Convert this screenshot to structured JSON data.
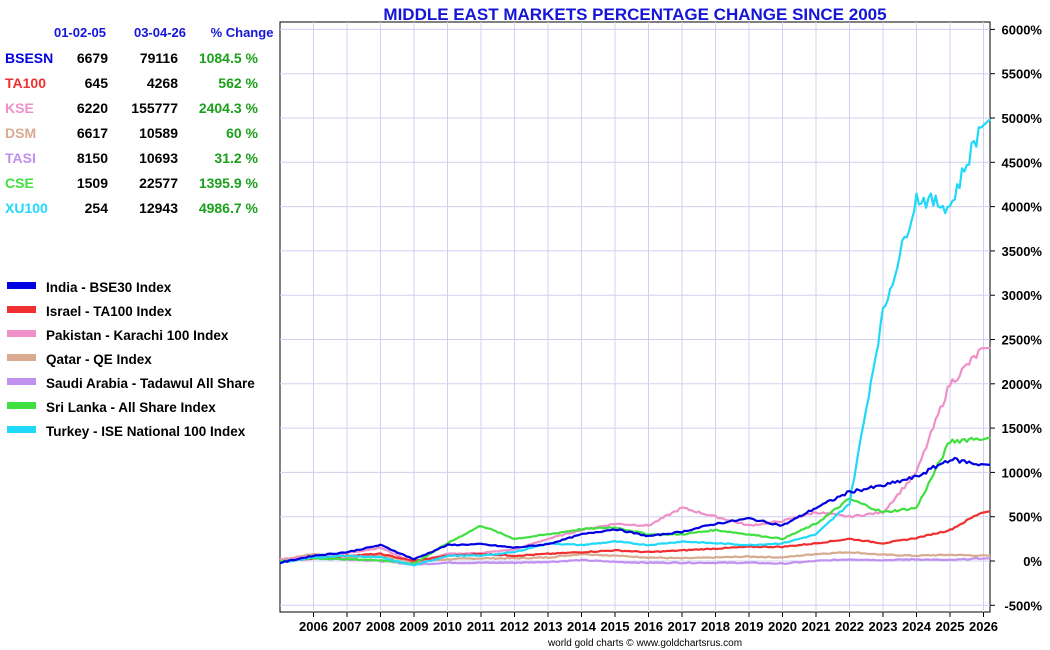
{
  "title": "MIDDLE EAST MARKETS PERCENTAGE CHANGE SINCE 2005",
  "footer": "world gold charts © www.goldchartsrus.com",
  "table": {
    "headers": [
      "01-02-05",
      "03-04-26",
      "% Change"
    ],
    "rows": [
      {
        "code": "BSESN",
        "start": "6679",
        "end": "79116",
        "change": "1084.5 %",
        "color": "#0000e0"
      },
      {
        "code": "TA100",
        "start": "645",
        "end": "4268",
        "change": "562 %",
        "color": "#f03030"
      },
      {
        "code": "KSE",
        "start": "6220",
        "end": "155777",
        "change": "2404.3 %",
        "color": "#f090c8"
      },
      {
        "code": "DSM",
        "start": "6617",
        "end": "10589",
        "change": "60 %",
        "color": "#d8aa90"
      },
      {
        "code": "TASI",
        "start": "8150",
        "end": "10693",
        "change": "31.2 %",
        "color": "#c090f0"
      },
      {
        "code": "CSE",
        "start": "1509",
        "end": "22577",
        "change": "1395.9 %",
        "color": "#40e040"
      },
      {
        "code": "XU100",
        "start": "254",
        "end": "12943",
        "change": "4986.7 %",
        "color": "#20d8f8"
      }
    ]
  },
  "legend": [
    {
      "label": "India - BSE30 Index",
      "color": "#0000e0"
    },
    {
      "label": "Israel - TA100 Index",
      "color": "#f03030"
    },
    {
      "label": "Pakistan - Karachi 100 Index",
      "color": "#f090c8"
    },
    {
      "label": "Qatar - QE Index",
      "color": "#d8aa90"
    },
    {
      "label": "Saudi Arabia - Tadawul All Share",
      "color": "#c090f0"
    },
    {
      "label": "Sri Lanka - All Share Index",
      "color": "#40e040"
    },
    {
      "label": "Turkey - ISE National 100 Index",
      "color": "#20d8f8"
    }
  ],
  "chart_data": {
    "type": "line",
    "title": "MIDDLE EAST MARKETS PERCENTAGE CHANGE SINCE 2005",
    "xlabel": "",
    "ylabel": "",
    "grid": true,
    "xlim": [
      2005,
      2026.2
    ],
    "ylim": [
      -500,
      6000
    ],
    "y_ticks": [
      -500,
      0,
      500,
      1000,
      1500,
      2000,
      2500,
      3000,
      3500,
      4000,
      4500,
      5000,
      5500,
      6000
    ],
    "y_tick_labels": [
      "-500%",
      "0%",
      "500%",
      "1000%",
      "1500%",
      "2000%",
      "2500%",
      "3000%",
      "3500%",
      "4000%",
      "4500%",
      "5000%",
      "5500%",
      "6000%"
    ],
    "x_tick_labels": [
      "2006",
      "2007",
      "2008",
      "2009",
      "2010",
      "2011",
      "2012",
      "2013",
      "2014",
      "2015",
      "2016",
      "2017",
      "2018",
      "2019",
      "2020",
      "2021",
      "2022",
      "2023",
      "2024",
      "2025",
      "2026"
    ],
    "x": [
      2005,
      2006,
      2007,
      2008,
      2009,
      2010,
      2011,
      2012,
      2013,
      2014,
      2015,
      2016,
      2017,
      2018,
      2019,
      2020,
      2021,
      2022,
      2023,
      2024,
      2025,
      2026
    ],
    "series": [
      {
        "name": "India - BSE30 Index",
        "color": "#0000e0",
        "values": [
          -20,
          60,
          100,
          180,
          20,
          180,
          190,
          150,
          190,
          300,
          360,
          280,
          330,
          420,
          480,
          400,
          600,
          780,
          850,
          950,
          1150,
          1084.5
        ]
      },
      {
        "name": "Israel - TA100 Index",
        "color": "#f03030",
        "values": [
          -10,
          30,
          60,
          80,
          0,
          60,
          80,
          60,
          80,
          100,
          120,
          100,
          120,
          140,
          160,
          160,
          200,
          250,
          200,
          260,
          350,
          562
        ]
      },
      {
        "name": "Pakistan - Karachi 100 Index",
        "color": "#f090c8",
        "values": [
          20,
          50,
          90,
          150,
          -20,
          80,
          90,
          130,
          250,
          350,
          420,
          400,
          600,
          500,
          400,
          450,
          550,
          500,
          550,
          1000,
          2000,
          2404.3
        ]
      },
      {
        "name": "Qatar - QE Index",
        "color": "#d8aa90",
        "values": [
          10,
          80,
          40,
          60,
          -10,
          20,
          30,
          30,
          40,
          80,
          60,
          40,
          30,
          40,
          50,
          40,
          80,
          100,
          70,
          60,
          70,
          60
        ]
      },
      {
        "name": "Saudi Arabia - Tadawul All Share",
        "color": "#c090f0",
        "values": [
          0,
          30,
          20,
          0,
          -40,
          -20,
          -20,
          -20,
          -10,
          10,
          -10,
          -20,
          -20,
          -20,
          -20,
          -30,
          0,
          20,
          10,
          20,
          10,
          31.2
        ]
      },
      {
        "name": "Sri Lanka - All Share Index",
        "color": "#40e040",
        "values": [
          0,
          30,
          20,
          10,
          -30,
          200,
          400,
          250,
          300,
          360,
          380,
          300,
          300,
          350,
          300,
          250,
          420,
          700,
          550,
          600,
          1350,
          1395.9
        ]
      },
      {
        "name": "Turkey - ISE National 100 Index",
        "color": "#20d8f8",
        "values": [
          -20,
          40,
          60,
          40,
          -50,
          60,
          60,
          100,
          200,
          180,
          220,
          180,
          220,
          200,
          180,
          200,
          300,
          650,
          2800,
          4100,
          4000,
          4986.7
        ]
      }
    ]
  }
}
